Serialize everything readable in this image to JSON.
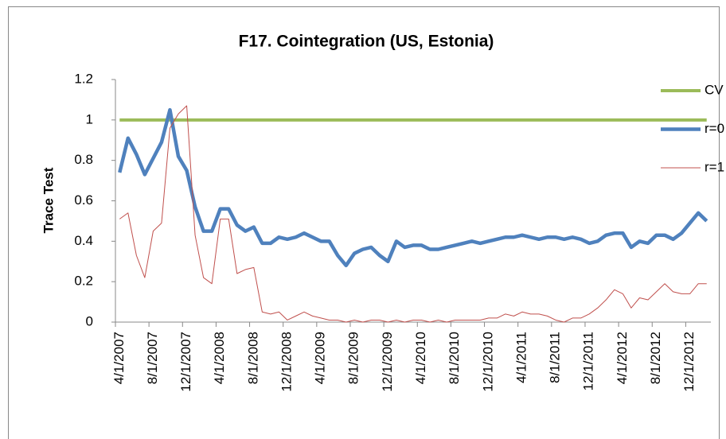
{
  "chart_data": {
    "type": "line",
    "title": "F17. Cointegration (US, Estonia)",
    "y_label": "Trace Test",
    "categories": [
      "4/1/2007",
      null,
      null,
      null,
      "8/1/2007",
      null,
      null,
      null,
      "12/1/2007",
      null,
      null,
      null,
      "4/1/2008",
      null,
      null,
      null,
      "8/1/2008",
      null,
      null,
      null,
      "12/1/2008",
      null,
      null,
      null,
      "4/1/2009",
      null,
      null,
      null,
      "8/1/2009",
      null,
      null,
      null,
      "12/1/2009",
      null,
      null,
      null,
      "4/1/2010",
      null,
      null,
      null,
      "8/1/2010",
      null,
      null,
      null,
      "12/1/2010",
      null,
      null,
      null,
      "4/1/2011",
      null,
      null,
      null,
      "8/1/2011",
      null,
      null,
      null,
      "12/1/2011",
      null,
      null,
      null,
      "4/1/2012",
      null,
      null,
      null,
      "8/1/2012",
      null,
      null,
      null,
      "12/1/2012",
      null,
      null
    ],
    "series": [
      {
        "name": "CV",
        "color": "#9bbb59",
        "width": 4,
        "values": [
          1,
          1,
          1,
          1,
          1,
          1,
          1,
          1,
          1,
          1,
          1,
          1,
          1,
          1,
          1,
          1,
          1,
          1,
          1,
          1,
          1,
          1,
          1,
          1,
          1,
          1,
          1,
          1,
          1,
          1,
          1,
          1,
          1,
          1,
          1,
          1,
          1,
          1,
          1,
          1,
          1,
          1,
          1,
          1,
          1,
          1,
          1,
          1,
          1,
          1,
          1,
          1,
          1,
          1,
          1,
          1,
          1,
          1,
          1,
          1,
          1,
          1,
          1,
          1,
          1,
          1,
          1,
          1,
          1,
          1,
          1
        ]
      },
      {
        "name": "r=0",
        "color": "#4f81bd",
        "width": 4.5,
        "values": [
          0.74,
          0.91,
          0.83,
          0.73,
          0.81,
          0.89,
          1.05,
          0.82,
          0.75,
          0.57,
          0.45,
          0.45,
          0.56,
          0.56,
          0.48,
          0.45,
          0.47,
          0.39,
          0.39,
          0.42,
          0.41,
          0.42,
          0.44,
          0.42,
          0.4,
          0.4,
          0.33,
          0.28,
          0.34,
          0.36,
          0.37,
          0.33,
          0.3,
          0.4,
          0.37,
          0.38,
          0.38,
          0.36,
          0.36,
          0.37,
          0.38,
          0.39,
          0.4,
          0.39,
          0.4,
          0.41,
          0.42,
          0.42,
          0.43,
          0.42,
          0.41,
          0.42,
          0.42,
          0.41,
          0.42,
          0.41,
          0.39,
          0.4,
          0.43,
          0.44,
          0.44,
          0.37,
          0.4,
          0.39,
          0.43,
          0.43,
          0.41,
          0.44,
          0.49,
          0.54,
          0.5
        ]
      },
      {
        "name": "r=1",
        "color": "#c0504d",
        "width": 1,
        "values": [
          0.51,
          0.54,
          0.33,
          0.22,
          0.45,
          0.49,
          0.96,
          1.03,
          1.07,
          0.43,
          0.22,
          0.19,
          0.51,
          0.51,
          0.24,
          0.26,
          0.27,
          0.05,
          0.04,
          0.05,
          0.01,
          0.03,
          0.05,
          0.03,
          0.02,
          0.01,
          0.01,
          0.0,
          0.01,
          0.0,
          0.01,
          0.01,
          0.0,
          0.01,
          0.0,
          0.01,
          0.01,
          0.0,
          0.01,
          0.0,
          0.01,
          0.01,
          0.01,
          0.01,
          0.02,
          0.02,
          0.04,
          0.03,
          0.05,
          0.04,
          0.04,
          0.03,
          0.01,
          0.0,
          0.02,
          0.02,
          0.04,
          0.07,
          0.11,
          0.16,
          0.14,
          0.07,
          0.12,
          0.11,
          0.15,
          0.19,
          0.15,
          0.14,
          0.14,
          0.19,
          0.19
        ]
      }
    ],
    "ylim": [
      0,
      1.2
    ],
    "yticks": [
      0,
      0.2,
      0.4,
      0.6,
      0.8,
      1,
      1.2
    ],
    "legend": "upper right"
  }
}
